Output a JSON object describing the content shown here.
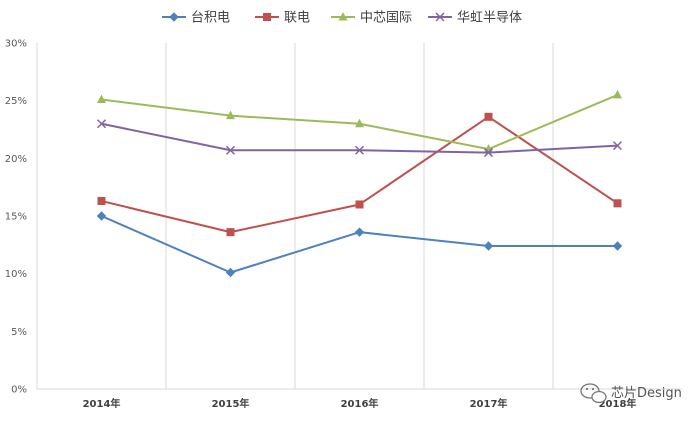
{
  "chart_data": {
    "type": "line",
    "categories": [
      "2014年",
      "2015年",
      "2016年",
      "2017年",
      "2018年"
    ],
    "ylim": [
      0,
      30
    ],
    "yticks": [
      "0%",
      "5%",
      "10%",
      "15%",
      "20%",
      "25%",
      "30%"
    ],
    "xlabel": "",
    "ylabel": "",
    "grid": "vertical",
    "legend": "top-center",
    "series": [
      {
        "name": "台积电",
        "color": "#4f81bd",
        "marker": "diamond",
        "values": [
          15.0,
          10.1,
          13.6,
          12.4,
          12.4
        ]
      },
      {
        "name": "联电",
        "color": "#c0504d",
        "marker": "square",
        "values": [
          16.3,
          13.6,
          16.0,
          23.6,
          16.1
        ]
      },
      {
        "name": "中芯国际",
        "color": "#9bbb59",
        "marker": "triangle",
        "values": [
          25.1,
          23.7,
          23.0,
          20.8,
          25.5
        ]
      },
      {
        "name": "华虹半导体",
        "color": "#8064a2",
        "marker": "x",
        "values": [
          23.0,
          20.7,
          20.7,
          20.5,
          21.1
        ]
      }
    ]
  },
  "watermark": {
    "text": "芯片Design"
  }
}
